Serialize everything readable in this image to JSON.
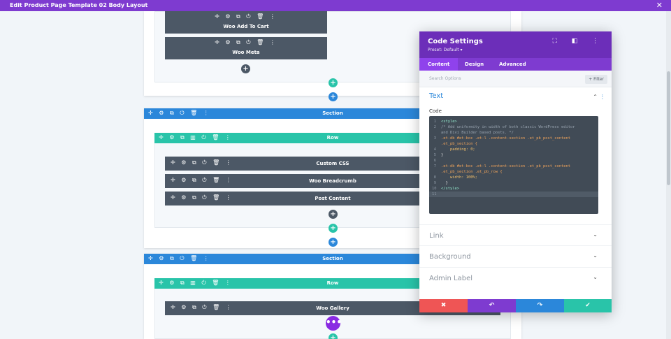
{
  "topbar": {
    "title": "Edit Product Page Template 02 Body Layout",
    "close": "✕"
  },
  "builder": {
    "tools_section": "✛ ⚙ ⧉ ⏻ 🗑 ⋮",
    "tools_row": "✛ ⚙ ⧉ ▥ ⏻ 🗑 ⋮",
    "tools_module": "✛ ⚙ ⧉ ⏻ 🗑 ⋮",
    "add": "+",
    "more": "•••",
    "modules_top": [
      "Woo Add To Cart",
      "Woo Meta"
    ],
    "section1": {
      "label": "Section",
      "row_label": "Row",
      "modules": [
        "Custom CSS",
        "Woo Breadcrumb",
        "Post Content"
      ]
    },
    "section2": {
      "label": "Section",
      "row_label": "Row",
      "modules": [
        "Woo Gallery"
      ]
    }
  },
  "modal": {
    "title": "Code Settings",
    "preset": "Preset: Default ▾",
    "header_icons": "⛶ ◧ ⋮",
    "tabs": [
      "Content",
      "Design",
      "Advanced"
    ],
    "active_tab": "Content",
    "search_placeholder": "Search Options",
    "filter_label": "+ Filter",
    "groups": {
      "text": "Text",
      "link": "Link",
      "background": "Background",
      "admin_label": "Admin Label"
    },
    "code_label": "Code",
    "code_lines": [
      {
        "n": "1",
        "text": "<style>"
      },
      {
        "n": "2",
        "text": "/* Add uniformity in width of both classic WordPress editor"
      },
      {
        "n": "",
        "text": "and Divi Builder based posts. */"
      },
      {
        "n": "3",
        "text": ".et-db #et-boc .et-l .content-section .et_pb_post_content"
      },
      {
        "n": "",
        "text": ".et_pb_section {"
      },
      {
        "n": "4",
        "text": "    padding: 0;"
      },
      {
        "n": "5",
        "text": "}"
      },
      {
        "n": "6",
        "text": ""
      },
      {
        "n": "7",
        "text": ".et-db #et-boc .et-l .content-section .et_pb_post_content"
      },
      {
        "n": "",
        "text": ".et_pb_section .et_pb_row {"
      },
      {
        "n": "8",
        "text": "    width: 100%;"
      },
      {
        "n": "9",
        "text": "  }"
      },
      {
        "n": "10",
        "text": "</style>"
      },
      {
        "n": "11",
        "text": ""
      }
    ],
    "actions": {
      "cancel": "✖",
      "undo": "↶",
      "redo": "↷",
      "save": "✔"
    },
    "chevron_up": "⌃",
    "chevron_down": "⌄",
    "kebab": "⋮"
  },
  "colors": {
    "purple": "#7e3bd0",
    "section_blue": "#2b87da",
    "row_green": "#29c4a9",
    "module_gray": "#4c5866",
    "cancel_red": "#ef5555"
  }
}
